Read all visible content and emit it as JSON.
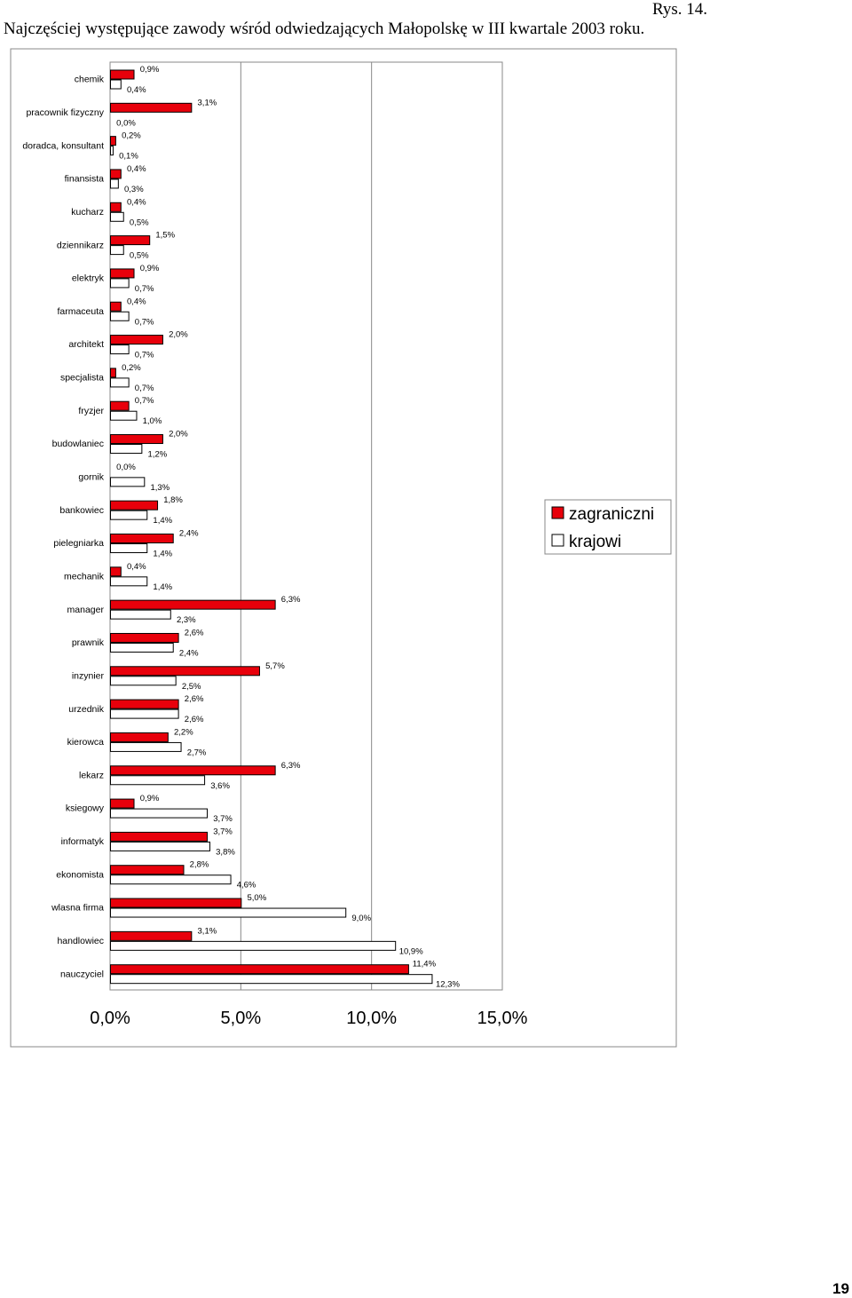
{
  "figure_label": "Rys. 14.",
  "title": "Najczęściej występujące zawody wśród odwiedzających Małopolskę w III kwartale 2003 roku.",
  "page_number": "19",
  "chart_data": {
    "type": "bar",
    "orientation": "horizontal",
    "title": "Najczęściej występujące zawody wśród odwiedzających Małopolskę w III kwartale 2003 roku.",
    "categories": [
      "chemik",
      "pracownik fizyczny",
      "doradca, konsultant",
      "finansista",
      "kucharz",
      "dziennikarz",
      "elektryk",
      "farmaceuta",
      "architekt",
      "specjalista",
      "fryzjer",
      "budowlaniec",
      "gornik",
      "bankowiec",
      "pielegniarka",
      "mechanik",
      "manager",
      "prawnik",
      "inzynier",
      "urzednik",
      "kierowca",
      "lekarz",
      "ksiegowy",
      "informatyk",
      "ekonomista",
      "wlasna firma",
      "handlowiec",
      "nauczyciel"
    ],
    "series": [
      {
        "name": "zagraniczni",
        "color": "#e8000b",
        "values": [
          0.9,
          3.1,
          0.2,
          0.4,
          0.4,
          1.5,
          0.9,
          0.4,
          2.0,
          0.2,
          0.7,
          2.0,
          0.0,
          1.8,
          2.4,
          0.4,
          6.3,
          2.6,
          5.7,
          2.6,
          2.2,
          6.3,
          0.9,
          3.7,
          2.8,
          5.0,
          3.1,
          11.4
        ],
        "labels": [
          "0,9%",
          "3,1%",
          "0,2%",
          "0,4%",
          "0,4%",
          "1,5%",
          "0,9%",
          "0,4%",
          "2,0%",
          "0,2%",
          "0,7%",
          "2,0%",
          "0,0%",
          "1,8%",
          "2,4%",
          "0,4%",
          "6,3%",
          "2,6%",
          "5,7%",
          "2,6%",
          "2,2%",
          "6,3%",
          "0,9%",
          "3,7%",
          "2,8%",
          "5,0%",
          "3,1%",
          "11,4%"
        ]
      },
      {
        "name": "krajowi",
        "color": "#ffffff",
        "values": [
          0.4,
          0.0,
          0.1,
          0.3,
          0.5,
          0.5,
          0.7,
          0.7,
          0.7,
          0.7,
          1.0,
          1.2,
          1.3,
          1.4,
          1.4,
          1.4,
          2.3,
          2.4,
          2.5,
          2.6,
          2.7,
          3.6,
          3.7,
          3.8,
          4.6,
          9.0,
          10.9,
          12.3
        ],
        "labels": [
          "0,4%",
          "0,0%",
          "0,1%",
          "0,3%",
          "0,5%",
          "0,5%",
          "0,7%",
          "0,7%",
          "0,7%",
          "0,7%",
          "1,0%",
          "1,2%",
          "1,3%",
          "1,4%",
          "1,4%",
          "1,4%",
          "2,3%",
          "2,4%",
          "2,5%",
          "2,6%",
          "2,7%",
          "3,6%",
          "3,7%",
          "3,8%",
          "4,6%",
          "9,0%",
          "10,9%",
          "12,3%"
        ]
      }
    ],
    "xlim": [
      0,
      15
    ],
    "x_ticks": [
      0,
      5,
      10,
      15
    ],
    "x_tick_labels": [
      "0,0%",
      "5,0%",
      "10,0%",
      "15,0%"
    ],
    "grid": "vertical",
    "legend": "right",
    "xlabel": "",
    "ylabel": ""
  }
}
